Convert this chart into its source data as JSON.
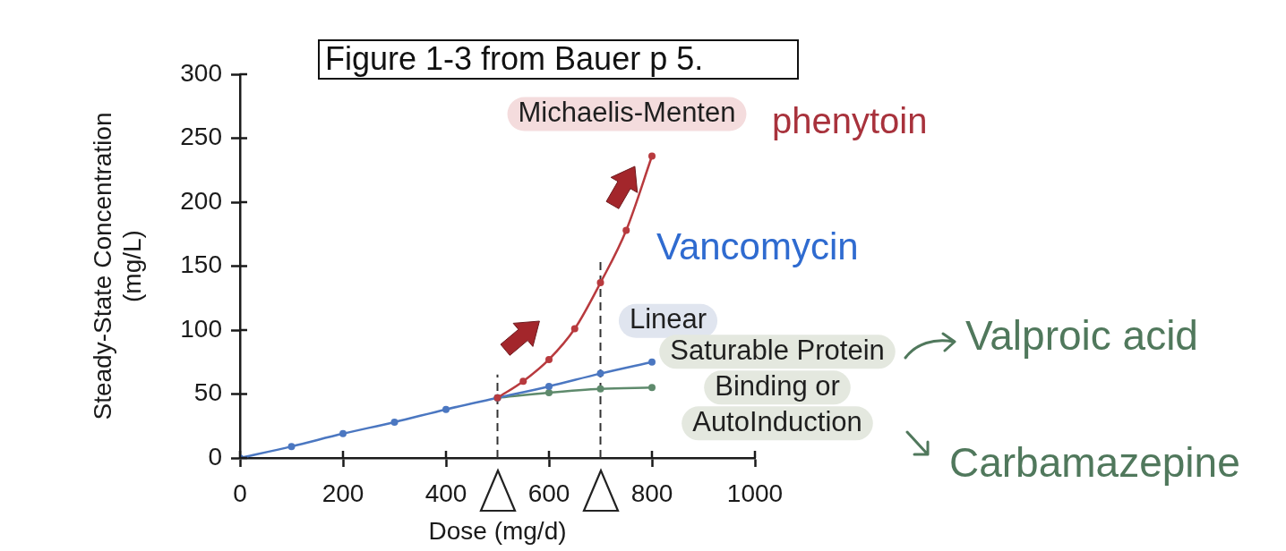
{
  "chart_data": {
    "type": "line",
    "title": "Figure 1-3 from Bauer p 5.",
    "xlabel": "Dose (mg/d)",
    "ylabel": "Steady-State Concentration (mg/L)",
    "series": [
      {
        "name": "Michaelis-Menten",
        "color": "#b83a3e",
        "x": [
          500,
          550,
          600,
          650,
          700,
          750,
          800
        ],
        "values": [
          47,
          60,
          77,
          101,
          137,
          178,
          236
        ]
      },
      {
        "name": "Linear",
        "color": "#4b77c1",
        "x": [
          0,
          100,
          200,
          300,
          400,
          500,
          600,
          700,
          800
        ],
        "values": [
          0,
          9,
          19,
          28,
          38,
          47,
          56,
          66,
          75
        ]
      },
      {
        "name": "Saturable Protein Binding or AutoInduction",
        "color": "#5e8a6c",
        "x": [
          500,
          600,
          700,
          800
        ],
        "values": [
          47,
          51,
          54,
          55
        ]
      }
    ],
    "xlim": [
      0,
      1000
    ],
    "xticks": [
      0,
      200,
      400,
      600,
      800,
      1000
    ],
    "ylim": [
      0,
      300
    ],
    "yticks": [
      0,
      50,
      100,
      150,
      200,
      250,
      300
    ],
    "ref_lines": [
      {
        "axis": "x",
        "value": 500,
        "line_style": "dashed",
        "color": "#333333"
      },
      {
        "axis": "x",
        "value": 700,
        "line_style": "dashed",
        "color": "#333333"
      }
    ],
    "annotations": [
      "phenytoin",
      "Vancomycin",
      "Valproic acid",
      "Carbamazepine"
    ],
    "grid": false,
    "legend": false,
    "marker": "circle",
    "line_style": "solid"
  }
}
